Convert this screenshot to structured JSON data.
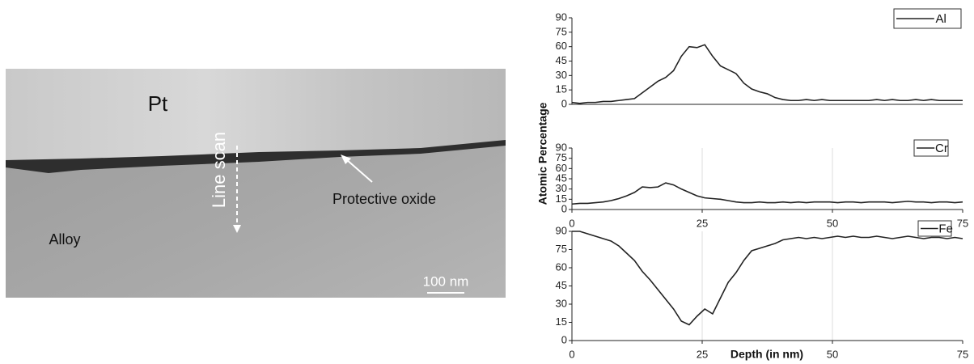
{
  "image": {
    "labels": {
      "layer_top": "Pt",
      "scan": "Line scan",
      "oxide": "Protective oxide",
      "substrate": "Alloy",
      "scale_bar": "100 nm"
    }
  },
  "chart_data": [
    {
      "type": "line",
      "legend": "upper right",
      "x": [
        0,
        1.5,
        3,
        4.5,
        6,
        7.5,
        9,
        10.5,
        12,
        13.5,
        15,
        16.5,
        18,
        19.5,
        21,
        22.5,
        24,
        25.5,
        27,
        28.5,
        30,
        31.5,
        33,
        34.5,
        36,
        37.5,
        39,
        40.5,
        42,
        43.5,
        45,
        46.5,
        48,
        49.5,
        51,
        52.5,
        54,
        55.5,
        57,
        58.5,
        60,
        61.5,
        63,
        64.5,
        66,
        67.5,
        69,
        70.5,
        72,
        73.5,
        75
      ],
      "series": [
        {
          "name": "Al",
          "color": "#222222",
          "values": [
            2,
            1,
            2,
            2,
            3,
            3,
            4,
            5,
            6,
            12,
            18,
            24,
            28,
            35,
            50,
            60,
            59,
            62,
            50,
            40,
            36,
            32,
            22,
            16,
            13,
            11,
            7,
            5,
            4,
            4,
            5,
            4,
            5,
            4,
            4,
            4,
            4,
            4,
            4,
            5,
            4,
            5,
            4,
            4,
            5,
            4,
            5,
            4,
            4,
            4,
            4
          ]
        }
      ],
      "xlim": [
        0,
        75
      ],
      "ylim": [
        0,
        90
      ],
      "yticks": [
        0,
        15,
        30,
        45,
        60,
        75,
        90
      ]
    },
    {
      "type": "line",
      "legend": "upper right",
      "ylabel": "Atomic Percentage",
      "x": [
        0,
        1.5,
        3,
        4.5,
        6,
        7.5,
        9,
        10.5,
        12,
        13.5,
        15,
        16.5,
        18,
        19.5,
        21,
        22.5,
        24,
        25.5,
        27,
        28.5,
        30,
        31.5,
        33,
        34.5,
        36,
        37.5,
        39,
        40.5,
        42,
        43.5,
        45,
        46.5,
        48,
        49.5,
        51,
        52.5,
        54,
        55.5,
        57,
        58.5,
        60,
        61.5,
        63,
        64.5,
        66,
        67.5,
        69,
        70.5,
        72,
        73.5,
        75
      ],
      "series": [
        {
          "name": "Cr",
          "color": "#222222",
          "values": [
            8,
            9,
            9,
            10,
            11,
            13,
            16,
            20,
            25,
            33,
            32,
            33,
            39,
            36,
            30,
            25,
            20,
            17,
            16,
            15,
            13,
            11,
            10,
            10,
            11,
            10,
            10,
            11,
            10,
            11,
            10,
            11,
            11,
            11,
            10,
            11,
            11,
            10,
            11,
            11,
            11,
            10,
            11,
            12,
            11,
            11,
            10,
            11,
            11,
            10,
            11
          ]
        }
      ],
      "xlim": [
        0,
        75
      ],
      "ylim": [
        0,
        90
      ],
      "yticks": [
        0,
        15,
        30,
        45,
        60,
        75,
        90
      ],
      "xticks": [
        0,
        25,
        50,
        75
      ]
    },
    {
      "type": "line",
      "legend": "upper right",
      "xlabel": "Depth (in nm)",
      "x": [
        0,
        1.5,
        3,
        4.5,
        6,
        7.5,
        9,
        10.5,
        12,
        13.5,
        15,
        16.5,
        18,
        19.5,
        21,
        22.5,
        24,
        25.5,
        27,
        28.5,
        30,
        31.5,
        33,
        34.5,
        36,
        37.5,
        39,
        40.5,
        42,
        43.5,
        45,
        46.5,
        48,
        49.5,
        51,
        52.5,
        54,
        55.5,
        57,
        58.5,
        60,
        61.5,
        63,
        64.5,
        66,
        67.5,
        69,
        70.5,
        72,
        73.5,
        75
      ],
      "series": [
        {
          "name": "Fe",
          "color": "#222222",
          "values": [
            90,
            90,
            88,
            86,
            84,
            82,
            78,
            72,
            66,
            57,
            50,
            42,
            34,
            26,
            16,
            13,
            20,
            26,
            22,
            35,
            48,
            56,
            66,
            74,
            76,
            78,
            80,
            83,
            84,
            85,
            84,
            85,
            84,
            85,
            86,
            85,
            86,
            85,
            85,
            86,
            85,
            84,
            85,
            86,
            85,
            84,
            85,
            85,
            84,
            85,
            84
          ]
        }
      ],
      "xlim": [
        0,
        75
      ],
      "ylim": [
        0,
        90
      ],
      "yticks": [
        0,
        15,
        30,
        45,
        60,
        75,
        90
      ],
      "xticks": [
        0,
        25,
        50,
        75
      ]
    }
  ]
}
